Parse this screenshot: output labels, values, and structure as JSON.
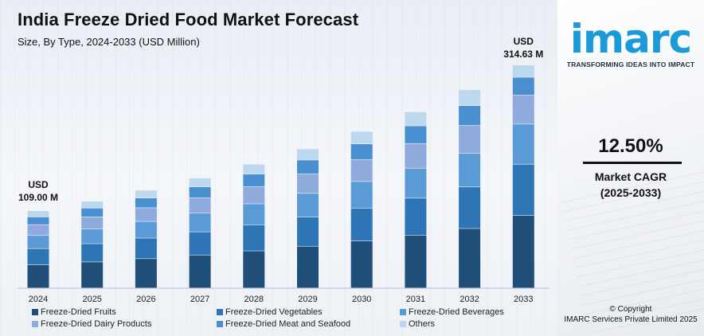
{
  "header": {
    "title": "India Freeze Dried Food Market Forecast",
    "subtitle": "Size, By Type, 2024-2033 (USD Million)"
  },
  "annotations": {
    "first_currency": "USD",
    "first_value": "109.00 M",
    "last_currency": "USD",
    "last_value": "314.63 M"
  },
  "brand": {
    "logo_text": "imarc",
    "tagline": "TRANSFORMING IDEAS INTO IMPACT",
    "logo_color": "#1a9bd7"
  },
  "cagr": {
    "value": "12.50%",
    "label": "Market CAGR",
    "period": "(2025-2033)"
  },
  "footer": {
    "copyright_line1": "© Copyright",
    "copyright_line2": "IMARC Services Private Limited 2025"
  },
  "chart_data": {
    "type": "bar",
    "stacked": true,
    "categories": [
      "2024",
      "2025",
      "2026",
      "2027",
      "2028",
      "2029",
      "2030",
      "2031",
      "2032",
      "2033"
    ],
    "totals": [
      109.0,
      122.6,
      138.0,
      155.2,
      174.6,
      196.4,
      221.0,
      248.6,
      279.7,
      314.63
    ],
    "ylim": [
      0,
      314.63
    ],
    "legend_position": "bottom",
    "series": [
      {
        "name": "Freeze-Dried Fruits",
        "color": "#1f4e79",
        "values": [
          32.7,
          36.8,
          41.4,
          46.6,
          52.4,
          58.9,
          66.3,
          74.6,
          83.9,
          102.3
        ]
      },
      {
        "name": "Freeze-Dried Vegetables",
        "color": "#2e75b6",
        "values": [
          22.9,
          25.7,
          29.0,
          32.6,
          36.7,
          41.2,
          46.4,
          52.2,
          58.7,
          72.4
        ]
      },
      {
        "name": "Freeze-Dried Beverages",
        "color": "#5b9bd5",
        "values": [
          18.5,
          20.8,
          23.5,
          26.4,
          29.7,
          33.4,
          37.6,
          42.3,
          47.5,
          56.6
        ]
      },
      {
        "name": "Freeze-Dried Dairy Products",
        "color": "#8faadc",
        "values": [
          15.3,
          17.2,
          19.3,
          21.7,
          24.4,
          27.5,
          30.9,
          34.8,
          39.2,
          40.9
        ]
      },
      {
        "name": "Freeze-Dried Meat and Seafood",
        "color": "#4a8fd0",
        "values": [
          10.9,
          12.3,
          13.8,
          15.5,
          17.5,
          19.6,
          22.1,
          24.9,
          28.0,
          25.2
        ]
      },
      {
        "name": "Others",
        "color": "#bdd7ee",
        "values": [
          8.7,
          9.8,
          11.0,
          12.4,
          13.9,
          15.8,
          17.7,
          19.8,
          22.4,
          17.23
        ]
      }
    ]
  }
}
